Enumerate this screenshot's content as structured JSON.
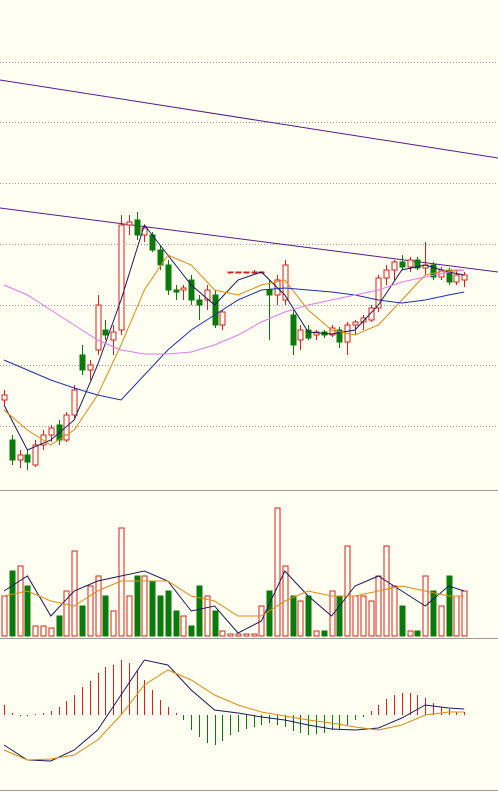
{
  "chart_data": [
    {
      "type": "candlestick",
      "xlim": [
        -0.51,
        63.33
      ],
      "ylim": [
        0,
        49
      ],
      "yticks": [
        6.4,
        12.5,
        18.5,
        24.6,
        30.7,
        36.8,
        42.8
      ],
      "grid": true,
      "up_color": "#d42020",
      "down_color": "#0a7a0a",
      "open": [
        9.0,
        5.0,
        3.0,
        3.5,
        2.5,
        4.5,
        5.5,
        6.5,
        5.0,
        7.5,
        13.5,
        12.0,
        14.0,
        16.0,
        15.0,
        16.0,
        26.5,
        27.0,
        25.5,
        25.5,
        24.0,
        22.5,
        20.0,
        20.0,
        21.0,
        19.0,
        19.0,
        19.5,
        16.5,
        21.8,
        21.8,
        21.8,
        21.8,
        21.8,
        20.0,
        19.5,
        19.0,
        17.5,
        15.0,
        16.0,
        15.5,
        15.8,
        15.5,
        16.0,
        14.8,
        16.5,
        16.8,
        17.0,
        18.2,
        21.2,
        22.0,
        22.8,
        22.3,
        23.0,
        22.2,
        22.5,
        21.3,
        22.0,
        20.8,
        21.0
      ],
      "high": [
        10.0,
        5.5,
        4.0,
        4.0,
        5.0,
        6.0,
        6.5,
        7.0,
        7.8,
        10.5,
        14.5,
        13.0,
        19.5,
        17.0,
        16.5,
        27.5,
        27.5,
        27.8,
        26.5,
        25.8,
        24.5,
        23.0,
        20.5,
        20.5,
        21.5,
        19.5,
        20.5,
        20.0,
        18.0,
        21.8,
        21.8,
        21.8,
        22.0,
        21.8,
        21.0,
        21.5,
        23.0,
        18.0,
        16.5,
        16.5,
        16.0,
        16.0,
        16.5,
        16.3,
        16.8,
        17.0,
        17.5,
        18.5,
        21.5,
        22.5,
        23.0,
        23.5,
        23.3,
        23.3,
        24.8,
        22.8,
        22.3,
        22.2,
        22.0,
        21.8
      ],
      "low": [
        8.5,
        2.5,
        2.2,
        2.0,
        2.3,
        4.0,
        4.8,
        4.5,
        4.8,
        7.2,
        11.5,
        11.0,
        13.5,
        15.0,
        13.5,
        15.5,
        25.5,
        25.0,
        24.8,
        23.8,
        22.0,
        19.5,
        19.0,
        19.0,
        18.5,
        17.0,
        18.0,
        16.2,
        16.0,
        21.8,
        21.8,
        21.8,
        21.6,
        21.8,
        15.0,
        18.5,
        18.5,
        13.5,
        14.0,
        15.0,
        15.0,
        15.2,
        15.3,
        14.2,
        13.5,
        15.5,
        16.0,
        16.8,
        17.8,
        20.5,
        21.0,
        22.0,
        21.8,
        22.0,
        21.5,
        21.0,
        21.0,
        20.5,
        20.5,
        20.3
      ],
      "close": [
        9.5,
        3.0,
        3.5,
        2.8,
        4.5,
        5.5,
        6.2,
        5.0,
        7.5,
        10.0,
        12.0,
        12.5,
        18.5,
        15.5,
        15.8,
        26.5,
        26.8,
        25.5,
        26.2,
        24.0,
        22.5,
        20.0,
        19.8,
        20.2,
        19.0,
        18.5,
        20.0,
        16.5,
        17.8,
        21.8,
        21.8,
        21.8,
        21.8,
        21.8,
        19.5,
        21.0,
        22.5,
        14.5,
        16.0,
        15.2,
        15.8,
        15.5,
        16.2,
        14.8,
        16.5,
        16.8,
        17.2,
        18.2,
        21.2,
        22.0,
        22.8,
        22.3,
        23.0,
        22.2,
        22.5,
        21.3,
        22.0,
        20.8,
        21.5,
        21.5
      ],
      "lines": [
        {
          "color": "#1a1a60",
          "x": [
            0,
            3,
            6,
            9,
            12,
            15,
            18,
            21,
            24,
            27,
            30,
            33,
            36,
            39,
            42,
            45,
            48,
            51,
            54,
            57,
            59
          ],
          "values": [
            8.5,
            4.0,
            5.0,
            7.0,
            12.5,
            19,
            26.5,
            23.5,
            20.5,
            18.5,
            21.0,
            21.8,
            19.5,
            15.8,
            15.6,
            16.0,
            18.5,
            22.0,
            22.5,
            21.8,
            21.5
          ]
        },
        {
          "color": "#e08a10",
          "x": [
            0,
            3,
            6,
            9,
            12,
            15,
            18,
            21,
            24,
            27,
            30,
            33,
            36,
            39,
            42,
            45,
            48,
            51,
            54,
            57,
            59
          ],
          "values": [
            8.0,
            6.0,
            4.5,
            6.0,
            9.5,
            14.5,
            20,
            23.5,
            22.5,
            20.0,
            19.5,
            20.5,
            21.0,
            18.0,
            16.0,
            15.5,
            16.5,
            19.0,
            21.5,
            22.0,
            22.0
          ]
        },
        {
          "color": "#1c2fb0",
          "x": [
            0,
            3,
            6,
            9,
            12,
            15,
            18,
            21,
            24,
            27,
            30,
            33,
            36,
            39,
            42,
            45,
            48,
            51,
            54,
            57,
            59
          ],
          "values": [
            13,
            12,
            11,
            10.2,
            9.5,
            9.0,
            11.5,
            14,
            16,
            17.5,
            19,
            20,
            20.2,
            20,
            19.8,
            19.5,
            19.0,
            18.7,
            19.0,
            19.5,
            19.8
          ]
        },
        {
          "color": "#e07ae8",
          "x": [
            0,
            3,
            6,
            9,
            12,
            15,
            18,
            21,
            24,
            27,
            30,
            33,
            36,
            39,
            42,
            45,
            48,
            51,
            54,
            57,
            59
          ],
          "values": [
            20.5,
            19.5,
            18.0,
            16.5,
            15.0,
            14.0,
            13.6,
            13.6,
            13.8,
            14.5,
            15.5,
            16.8,
            17.8,
            18.5,
            19.0,
            19.5,
            20.0,
            20.8,
            21.3,
            21.8,
            22.0
          ]
        }
      ],
      "trend_lines": [
        {
          "color": "#5a1a8a",
          "x": [
            -0.51,
            63.33
          ],
          "values": [
            41,
            33.2
          ]
        },
        {
          "color": "#5a1a8a",
          "x": [
            -0.51,
            63.33
          ],
          "values": [
            28.2,
            21.8
          ]
        }
      ]
    },
    {
      "type": "bar",
      "xlim": [
        -0.51,
        63.33
      ],
      "ylim": [
        0,
        130
      ],
      "values": [
        40,
        65,
        70,
        50,
        10,
        10,
        8,
        20,
        45,
        85,
        30,
        50,
        60,
        40,
        25,
        108,
        40,
        60,
        60,
        55,
        40,
        45,
        25,
        20,
        10,
        50,
        40,
        25,
        5,
        2,
        2,
        2,
        2,
        30,
        45,
        128,
        70,
        40,
        35,
        40,
        5,
        5,
        45,
        40,
        90,
        40,
        40,
        35,
        60,
        90,
        50,
        30,
        5,
        5,
        60,
        45,
        30,
        60,
        40,
        45
      ],
      "lines": [
        {
          "color": "#1a1a60",
          "x": [
            0,
            3,
            6,
            9,
            12,
            15,
            18,
            21,
            24,
            27,
            30,
            33,
            36,
            39,
            42,
            45,
            48,
            51,
            54,
            57,
            59
          ],
          "values": [
            45,
            60,
            20,
            45,
            55,
            60,
            65,
            55,
            25,
            30,
            3,
            15,
            65,
            40,
            20,
            50,
            60,
            45,
            30,
            50,
            45
          ]
        },
        {
          "color": "#e08a10",
          "x": [
            0,
            3,
            6,
            9,
            12,
            15,
            18,
            21,
            24,
            27,
            30,
            33,
            36,
            39,
            42,
            45,
            48,
            51,
            54,
            57,
            59
          ],
          "values": [
            40,
            45,
            35,
            30,
            45,
            55,
            55,
            55,
            40,
            35,
            20,
            20,
            35,
            45,
            40,
            40,
            45,
            50,
            45,
            40,
            40
          ]
        }
      ]
    },
    {
      "type": "macd",
      "xlim": [
        -0.51,
        63.33
      ],
      "ylim": [
        -70,
        70
      ],
      "up_color": "#d42020",
      "down_color": "#0a7a0a",
      "values": [
        10,
        2,
        -1,
        -1,
        1,
        2,
        4,
        8,
        14,
        20,
        28,
        34,
        42,
        48,
        50,
        55,
        52,
        44,
        35,
        25,
        15,
        8,
        2,
        -5,
        -15,
        -22,
        -28,
        -30,
        -26,
        -20,
        -17,
        -14,
        -12,
        -10,
        -8,
        -10,
        -12,
        -16,
        -18,
        -20,
        -19,
        -18,
        -15,
        -14,
        -10,
        -5,
        -2,
        4,
        10,
        16,
        20,
        22,
        22,
        20,
        17,
        12,
        8,
        6,
        3,
        3
      ],
      "lines": [
        {
          "color": "#1a1a60",
          "x": [
            0,
            3,
            6,
            9,
            12,
            15,
            18,
            21,
            24,
            27,
            30,
            33,
            36,
            39,
            42,
            45,
            48,
            51,
            54,
            57,
            59
          ],
          "values": [
            -30,
            -45,
            -46,
            -35,
            -15,
            20,
            55,
            50,
            25,
            5,
            2,
            -2,
            -5,
            -10,
            -14,
            -15,
            -13,
            -3,
            10,
            7,
            6
          ]
        },
        {
          "color": "#e08a10",
          "x": [
            0,
            3,
            6,
            9,
            12,
            15,
            18,
            21,
            24,
            27,
            30,
            33,
            36,
            39,
            42,
            45,
            48,
            51,
            54,
            57,
            59
          ],
          "values": [
            -35,
            -45,
            -44,
            -40,
            -25,
            0,
            30,
            45,
            35,
            20,
            10,
            3,
            -1,
            -5,
            -8,
            -12,
            -15,
            -10,
            0,
            3,
            3
          ]
        }
      ]
    }
  ]
}
